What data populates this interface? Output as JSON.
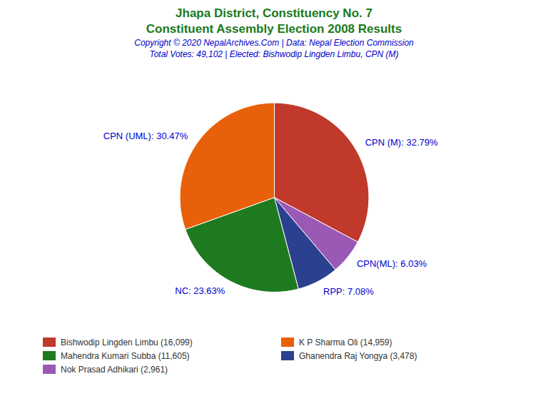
{
  "chart_data": {
    "type": "pie",
    "title": "Jhapa District, Constituency No. 7",
    "subtitle": "Constituent Assembly Election 2008 Results",
    "title_color": "#1a7a1a",
    "annotations": [
      {
        "text": "Copyright © 2020 NepalArchives.Com | Data: Nepal Election Commission",
        "color": "#0000cc"
      },
      {
        "text": "Total Votes: 49,102 | Elected: Bishwodip Lingden Limbu, CPN (M)",
        "color": "#0000cc"
      }
    ],
    "categories": [
      "CPN (M)",
      "CPN(ML)",
      "RPP",
      "NC",
      "CPN (UML)"
    ],
    "values": [
      32.79,
      6.03,
      7.08,
      23.63,
      30.47
    ],
    "value_labels": [
      "CPN (M): 32.79%",
      "CPN(ML): 6.03%",
      "RPP: 7.08%",
      "NC: 23.63%",
      "CPN (UML): 30.47%"
    ],
    "colors": [
      "#c0392b",
      "#9b59b6",
      "#2c4090",
      "#1e7a1e",
      "#e8600a"
    ],
    "data_labels": true,
    "label_color": "#0000cc",
    "legend_entries": [
      {
        "text": "Bishwodip Lingden Limbu (16,099)",
        "color": "#c0392b"
      },
      {
        "text": "K P Sharma Oli (14,959)",
        "color": "#e8600a"
      },
      {
        "text": "Mahendra Kumari Subba (11,605)",
        "color": "#1e7a1e"
      },
      {
        "text": "Ghanendra Raj Yongya (3,478)",
        "color": "#2c4090"
      },
      {
        "text": "Nok Prasad Adhikari (2,961)",
        "color": "#9b59b6"
      }
    ]
  }
}
